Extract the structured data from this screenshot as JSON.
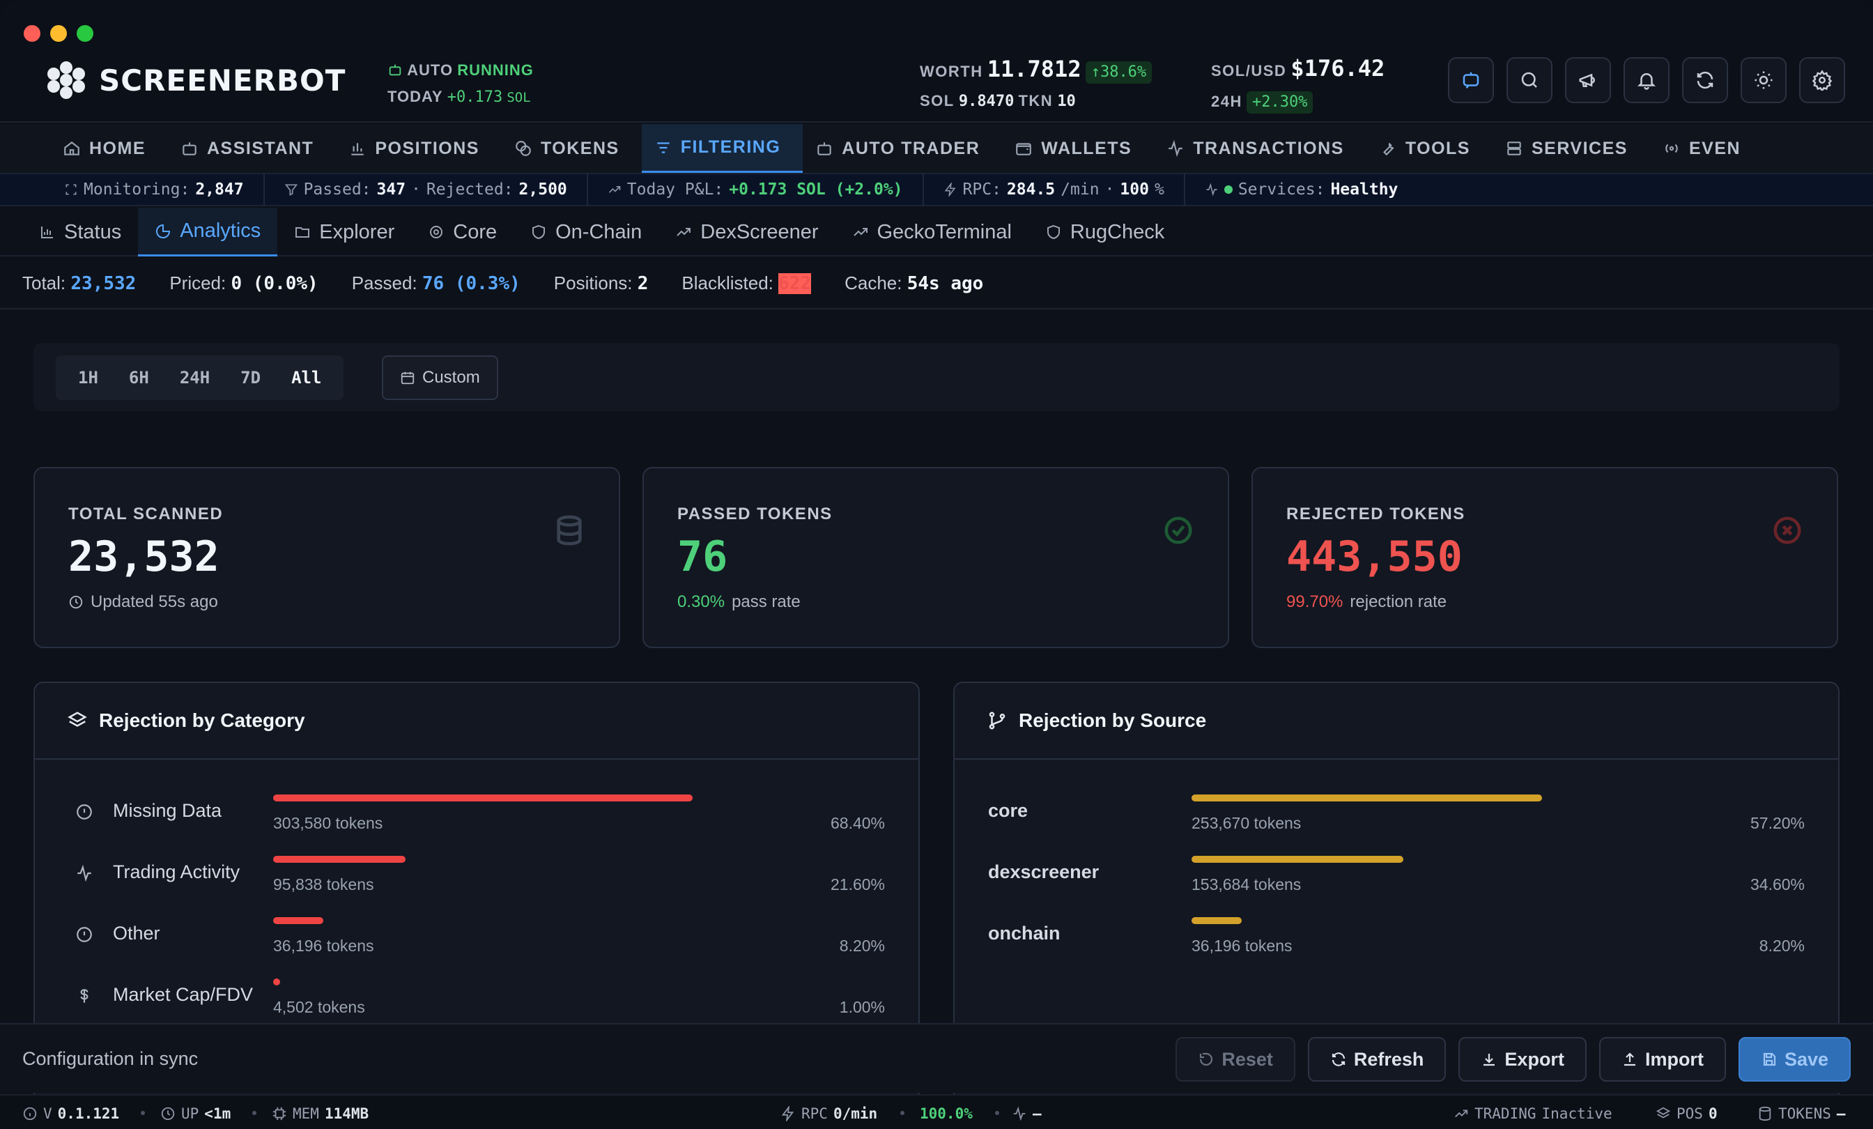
{
  "app": {
    "name": "SCREENERBOT"
  },
  "header": {
    "auto_label": "AUTO",
    "auto_state": "RUNNING",
    "today_label": "TODAY",
    "today_value": "+0.173",
    "today_unit": "SOL",
    "worth_label": "WORTH",
    "worth_value": "11.7812",
    "worth_change": "↑38.6%",
    "sol_label": "SOL",
    "sol_value": "9.8470",
    "tkn_label": "TKN",
    "tkn_value": "10",
    "solusd_label": "SOL/USD",
    "solusd_value": "$176.42",
    "h24_label": "24H",
    "h24_change": "+2.30%"
  },
  "nav": [
    {
      "label": "HOME",
      "icon": "home-icon"
    },
    {
      "label": "ASSISTANT",
      "icon": "robot-icon"
    },
    {
      "label": "POSITIONS",
      "icon": "chart-bar-icon"
    },
    {
      "label": "TOKENS",
      "icon": "coins-icon"
    },
    {
      "label": "FILTERING",
      "icon": "filter-icon"
    },
    {
      "label": "AUTO TRADER",
      "icon": "bot-icon"
    },
    {
      "label": "WALLETS",
      "icon": "wallet-icon"
    },
    {
      "label": "TRANSACTIONS",
      "icon": "activity-icon"
    },
    {
      "label": "TOOLS",
      "icon": "wrench-icon"
    },
    {
      "label": "SERVICES",
      "icon": "server-icon"
    },
    {
      "label": "EVEN",
      "icon": "radio-icon"
    }
  ],
  "strip": {
    "monitoring_label": "Monitoring:",
    "monitoring_value": "2,847",
    "passed_label": "Passed:",
    "passed_value": "347",
    "sep": "·",
    "rejected_label": "Rejected:",
    "rejected_value": "2,500",
    "pnl_label": "Today P&L:",
    "pnl_value": "+0.173 SOL (+2.0%)",
    "rpc_label": "RPC:",
    "rpc_value": "284.5",
    "rpc_unit": "/min",
    "rpc_pct": "100",
    "rpc_pct_unit": "%",
    "services_label": "Services:",
    "services_value": "Healthy"
  },
  "subtabs": [
    "Status",
    "Analytics",
    "Explorer",
    "Core",
    "On-Chain",
    "DexScreener",
    "GeckoTerminal",
    "RugCheck"
  ],
  "summary": {
    "total_label": "Total:",
    "total_value": "23,532",
    "priced_label": "Priced:",
    "priced_value": "0 (0.0%)",
    "passed_label": "Passed:",
    "passed_value": "76 (0.3%)",
    "positions_label": "Positions:",
    "positions_value": "2",
    "blacklisted_label": "Blacklisted:",
    "blacklisted_value": "622",
    "cache_label": "Cache:",
    "cache_value": "54s ago"
  },
  "time_filters": [
    "1H",
    "6H",
    "24H",
    "7D",
    "All"
  ],
  "custom_label": "Custom",
  "cards": {
    "scanned": {
      "title": "TOTAL SCANNED",
      "value": "23,532",
      "sub": "Updated 55s ago"
    },
    "passed": {
      "title": "PASSED TOKENS",
      "value": "76",
      "pct": "0.30%",
      "sub": "pass rate"
    },
    "rejected": {
      "title": "REJECTED TOKENS",
      "value": "443,550",
      "pct": "99.70%",
      "sub": "rejection rate"
    }
  },
  "by_category": {
    "title": "Rejection by Category",
    "rows": [
      {
        "name": "Missing Data",
        "count": "303,580 tokens",
        "pct": "68.40%",
        "fraction": 0.684,
        "icon": "info-circle-icon"
      },
      {
        "name": "Trading Activity",
        "count": "95,838 tokens",
        "pct": "21.60%",
        "fraction": 0.216,
        "icon": "activity-icon"
      },
      {
        "name": "Other",
        "count": "36,196 tokens",
        "pct": "8.20%",
        "fraction": 0.082,
        "icon": "info-circle-icon"
      },
      {
        "name": "Market Cap/FDV",
        "count": "4,502 tokens",
        "pct": "1.00%",
        "fraction": 0.01,
        "icon": "dollar-icon"
      }
    ]
  },
  "by_source": {
    "title": "Rejection by Source",
    "rows": [
      {
        "name": "core",
        "count": "253,670 tokens",
        "pct": "57.20%",
        "fraction": 0.572
      },
      {
        "name": "dexscreener",
        "count": "153,684 tokens",
        "pct": "34.60%",
        "fraction": 0.346
      },
      {
        "name": "onchain",
        "count": "36,196 tokens",
        "pct": "8.20%",
        "fraction": 0.082
      }
    ]
  },
  "actions": {
    "sync_text": "Configuration in sync",
    "reset": "Reset",
    "refresh": "Refresh",
    "export": "Export",
    "import": "Import",
    "save": "Save"
  },
  "footer": {
    "version_label": "V",
    "version": "0.1.121",
    "up_label": "UP",
    "up": "<1m",
    "mem_label": "MEM",
    "mem": "114MB",
    "rpc_label": "RPC",
    "rpc": "0/min",
    "rpc_pct": "100.0%",
    "activity": "–",
    "trading_label": "TRADING",
    "trading": "Inactive",
    "pos_label": "POS",
    "pos": "0",
    "tokens_label": "TOKENS",
    "tokens": "–"
  },
  "colors": {
    "accent": "#5aa8ff",
    "success": "#4ed07a",
    "danger": "#ef5350",
    "source_bar": "#d4a22a"
  }
}
